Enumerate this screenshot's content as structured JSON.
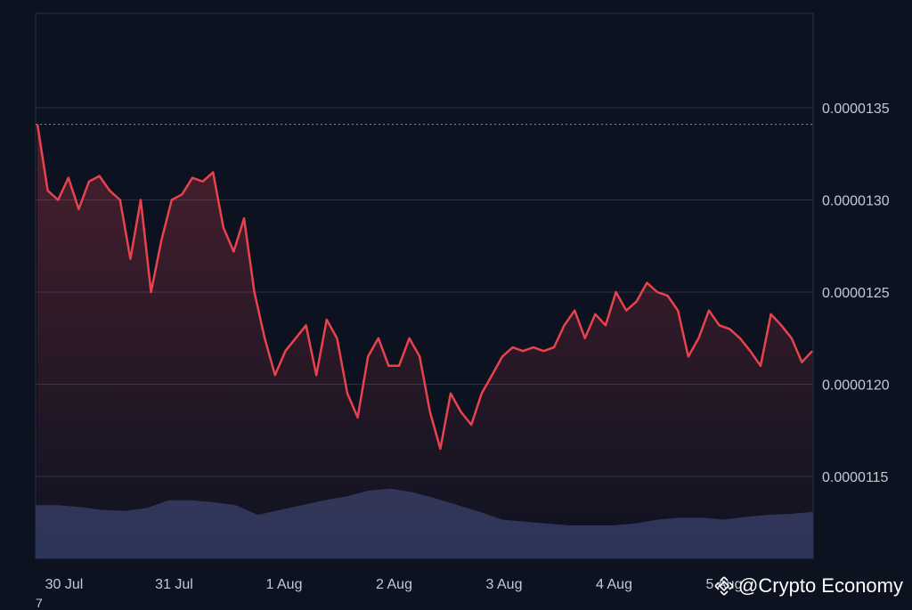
{
  "chart_data": {
    "type": "line",
    "title": "",
    "xlabel": "",
    "ylabel": "",
    "x_ticks": [
      "30 Jul",
      "31 Jul",
      "1 Aug",
      "2 Aug",
      "3 Aug",
      "4 Aug",
      "5 Aug"
    ],
    "y_ticks": [
      "0.0000135",
      "0.0000130",
      "0.0000125",
      "0.0000120",
      "0.0000115"
    ],
    "ylim": [
      1.1e-05,
      1.4e-05
    ],
    "grid": true,
    "reference_line": 1.341e-05,
    "colors": {
      "line": "#e8434d",
      "volume": "#2f3a5f",
      "background": "#0d1221"
    },
    "series": [
      {
        "x": [
          "29 Jul 23:00",
          "30 Jul 01:00",
          "30 Jul 03:00",
          "30 Jul 05:00",
          "30 Jul 07:00",
          "30 Jul 09:00",
          "30 Jul 11:00",
          "30 Jul 13:00",
          "30 Jul 15:00",
          "30 Jul 17:00",
          "30 Jul 19:00",
          "30 Jul 21:00",
          "30 Jul 23:00",
          "31 Jul 01:00",
          "31 Jul 03:00",
          "31 Jul 05:00",
          "31 Jul 07:00",
          "31 Jul 09:00",
          "31 Jul 11:00",
          "31 Jul 13:00",
          "31 Jul 15:00",
          "31 Jul 17:00",
          "31 Jul 19:00",
          "31 Jul 21:00",
          "31 Jul 23:00",
          "1 Aug 01:00",
          "1 Aug 03:00",
          "1 Aug 05:00",
          "1 Aug 07:00",
          "1 Aug 09:00",
          "1 Aug 11:00",
          "1 Aug 13:00",
          "1 Aug 15:00",
          "1 Aug 17:00",
          "1 Aug 19:00",
          "1 Aug 21:00",
          "1 Aug 23:00",
          "2 Aug 01:00",
          "2 Aug 03:00",
          "2 Aug 05:00",
          "2 Aug 07:00",
          "2 Aug 09:00",
          "2 Aug 11:00",
          "2 Aug 13:00",
          "2 Aug 15:00",
          "2 Aug 17:00",
          "2 Aug 19:00",
          "2 Aug 21:00",
          "2 Aug 23:00",
          "3 Aug 01:00",
          "3 Aug 03:00",
          "3 Aug 05:00",
          "3 Aug 07:00",
          "3 Aug 09:00",
          "3 Aug 11:00",
          "3 Aug 13:00",
          "3 Aug 15:00",
          "3 Aug 17:00",
          "3 Aug 19:00",
          "3 Aug 21:00",
          "3 Aug 23:00",
          "4 Aug 01:00",
          "4 Aug 03:00",
          "4 Aug 05:00",
          "4 Aug 07:00",
          "4 Aug 09:00",
          "4 Aug 11:00",
          "4 Aug 13:00",
          "4 Aug 15:00",
          "4 Aug 17:00",
          "4 Aug 19:00",
          "4 Aug 21:00",
          "4 Aug 23:00",
          "5 Aug 01:00",
          "5 Aug 03:00",
          "5 Aug 05:00"
        ],
        "values": [
          1.341e-05,
          1.305e-05,
          1.3e-05,
          1.312e-05,
          1.295e-05,
          1.31e-05,
          1.313e-05,
          1.305e-05,
          1.3e-05,
          1.268e-05,
          1.3e-05,
          1.25e-05,
          1.278e-05,
          1.3e-05,
          1.303e-05,
          1.312e-05,
          1.31e-05,
          1.315e-05,
          1.285e-05,
          1.272e-05,
          1.29e-05,
          1.25e-05,
          1.225e-05,
          1.205e-05,
          1.218e-05,
          1.225e-05,
          1.232e-05,
          1.205e-05,
          1.235e-05,
          1.225e-05,
          1.195e-05,
          1.182e-05,
          1.215e-05,
          1.225e-05,
          1.21e-05,
          1.21e-05,
          1.225e-05,
          1.215e-05,
          1.185e-05,
          1.165e-05,
          1.195e-05,
          1.185e-05,
          1.178e-05,
          1.195e-05,
          1.205e-05,
          1.215e-05,
          1.22e-05,
          1.218e-05,
          1.22e-05,
          1.218e-05,
          1.22e-05,
          1.232e-05,
          1.24e-05,
          1.225e-05,
          1.238e-05,
          1.232e-05,
          1.25e-05,
          1.24e-05,
          1.245e-05,
          1.255e-05,
          1.25e-05,
          1.248e-05,
          1.24e-05,
          1.215e-05,
          1.225e-05,
          1.24e-05,
          1.232e-05,
          1.23e-05,
          1.225e-05,
          1.218e-05,
          1.21e-05,
          1.238e-05,
          1.232e-05,
          1.225e-05,
          1.212e-05,
          1.218e-05
        ]
      }
    ],
    "volume": [
      0.55,
      0.55,
      0.53,
      0.5,
      0.49,
      0.52,
      0.6,
      0.6,
      0.58,
      0.55,
      0.45,
      0.5,
      0.55,
      0.6,
      0.64,
      0.7,
      0.72,
      0.68,
      0.62,
      0.55,
      0.48,
      0.4,
      0.38,
      0.36,
      0.34,
      0.34,
      0.34,
      0.36,
      0.4,
      0.42,
      0.42,
      0.4,
      0.43,
      0.45,
      0.46,
      0.48
    ]
  },
  "watermark": {
    "text": "@Crypto Economy"
  },
  "footnote": "7"
}
